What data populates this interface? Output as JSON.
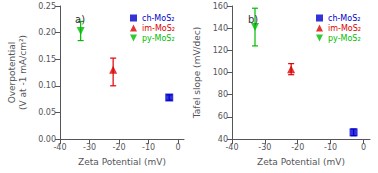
{
  "chart_data": [
    {
      "type": "scatter",
      "title": "a)",
      "x_label": "Zeta Potential (mV)",
      "y_label": "Overpotential\n(V at -1 mA/cm²)",
      "xlim": [
        -40,
        2
      ],
      "xticks": [
        -40,
        -30,
        -20,
        -10,
        0
      ],
      "ylim": [
        0,
        0.25
      ],
      "yticks": [
        {
          "value": 0,
          "label": "0.00"
        },
        0.05,
        {
          "value": 0.1,
          "label": "0.10"
        },
        0.15,
        {
          "value": 0.2,
          "label": "0.20"
        },
        0.25
      ],
      "grid": false,
      "legend": "upper right",
      "series": [
        {
          "name": "ch-MoS₂",
          "color": "#0000cc",
          "marker": "square",
          "x": [
            -3
          ],
          "values": [
            0.078
          ],
          "yerr_lo": [
            0.005
          ],
          "yerr_hi": [
            0.005
          ]
        },
        {
          "name": "im-MoS₂",
          "color": "#dd0000",
          "marker": "triangle_up",
          "x": [
            -22
          ],
          "values": [
            0.13
          ],
          "yerr_lo": [
            0.03
          ],
          "yerr_hi": [
            0.022
          ]
        },
        {
          "name": "py-MoS₂",
          "color": "#00bb00",
          "marker": "triangle_down",
          "x": [
            -33
          ],
          "values": [
            0.203
          ],
          "yerr_lo": [
            0.018
          ],
          "yerr_hi": [
            0.018
          ]
        }
      ]
    },
    {
      "type": "scatter",
      "title": "b)",
      "x_label": "Zeta Potential (mV)",
      "y_label": "Tafel slope (mV/dec)",
      "xlim": [
        -40,
        2
      ],
      "xticks": [
        -40,
        -30,
        -20,
        -10,
        0
      ],
      "ylim": [
        40,
        160
      ],
      "yticks": [
        40,
        60,
        80,
        100,
        120,
        140,
        160
      ],
      "grid": false,
      "legend": "upper right",
      "series": [
        {
          "name": "ch-MoS₂",
          "color": "#0000cc",
          "marker": "square",
          "x": [
            -3
          ],
          "values": [
            46
          ],
          "yerr_lo": [
            3
          ],
          "yerr_hi": [
            3
          ]
        },
        {
          "name": "im-MoS₂",
          "color": "#dd0000",
          "marker": "triangle_up",
          "x": [
            -22
          ],
          "values": [
            103
          ],
          "yerr_lo": [
            5
          ],
          "yerr_hi": [
            5
          ]
        },
        {
          "name": "py-MoS₂",
          "color": "#00bb00",
          "marker": "triangle_down",
          "x": [
            -33
          ],
          "values": [
            141
          ],
          "yerr_lo": [
            17
          ],
          "yerr_hi": [
            17
          ]
        }
      ]
    }
  ]
}
